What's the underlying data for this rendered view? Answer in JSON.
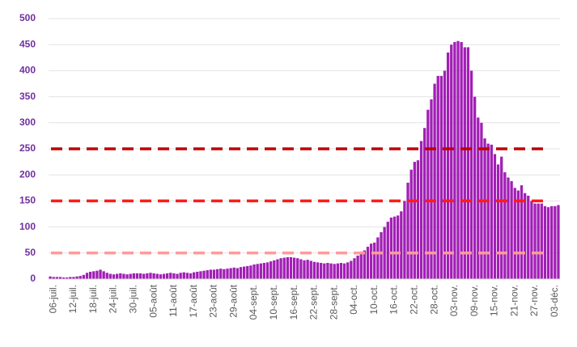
{
  "chart_data": {
    "type": "bar",
    "color": "#a11fb5",
    "categories": [
      null,
      "06-juil.",
      null,
      null,
      null,
      null,
      null,
      "12-juil.",
      null,
      null,
      null,
      null,
      null,
      "18-juil.",
      null,
      null,
      null,
      null,
      null,
      "24-juil.",
      null,
      null,
      null,
      null,
      null,
      "30-juil.",
      null,
      null,
      null,
      null,
      null,
      "05-août",
      null,
      null,
      null,
      null,
      null,
      "11-août",
      null,
      null,
      null,
      null,
      null,
      "17-août",
      null,
      null,
      null,
      null,
      null,
      "23-août",
      null,
      null,
      null,
      null,
      null,
      "29-août",
      null,
      null,
      null,
      null,
      null,
      "04-sept.",
      null,
      null,
      null,
      null,
      null,
      "10-sept.",
      null,
      null,
      null,
      null,
      null,
      "16-sept.",
      null,
      null,
      null,
      null,
      null,
      "22-sept.",
      null,
      null,
      null,
      null,
      null,
      "28-sept.",
      null,
      null,
      null,
      null,
      null,
      "04-oct.",
      null,
      null,
      null,
      null,
      null,
      "10-oct.",
      null,
      null,
      null,
      null,
      null,
      "16-oct.",
      null,
      null,
      null,
      null,
      null,
      "22-oct.",
      null,
      null,
      null,
      null,
      null,
      "28-oct.",
      null,
      null,
      null,
      null,
      null,
      "03-nov.",
      null,
      null,
      null,
      null,
      null,
      "09-nov.",
      null,
      null,
      null,
      null,
      null,
      "15-nov.",
      null,
      null,
      null,
      null,
      null,
      "21-nov.",
      null,
      null,
      null,
      null,
      null,
      "27-nov.",
      null,
      null,
      null,
      null,
      null,
      "03-déc.",
      null
    ],
    "values": [
      5,
      4,
      4,
      4,
      3,
      3,
      4,
      4,
      5,
      6,
      8,
      12,
      14,
      15,
      16,
      18,
      15,
      12,
      10,
      9,
      10,
      11,
      10,
      9,
      10,
      11,
      11,
      11,
      10,
      11,
      12,
      11,
      10,
      9,
      10,
      11,
      12,
      11,
      10,
      12,
      13,
      12,
      11,
      13,
      14,
      15,
      16,
      17,
      18,
      18,
      19,
      20,
      19,
      20,
      21,
      22,
      21,
      23,
      24,
      25,
      26,
      28,
      29,
      30,
      31,
      32,
      34,
      36,
      38,
      40,
      41,
      42,
      42,
      41,
      40,
      38,
      36,
      37,
      35,
      33,
      32,
      31,
      30,
      31,
      30,
      29,
      30,
      31,
      30,
      32,
      35,
      40,
      45,
      50,
      55,
      62,
      68,
      70,
      80,
      90,
      100,
      110,
      118,
      120,
      122,
      130,
      150,
      185,
      210,
      225,
      228,
      265,
      290,
      325,
      345,
      375,
      390,
      390,
      400,
      435,
      450,
      455,
      457,
      455,
      445,
      445,
      400,
      350,
      310,
      300,
      270,
      260,
      258,
      240,
      220,
      235,
      205,
      195,
      188,
      175,
      170,
      180,
      165,
      160,
      150,
      145,
      145,
      145,
      140,
      138,
      140,
      140,
      142
    ],
    "ylim": [
      0,
      500
    ],
    "yticks": [
      0,
      50,
      100,
      150,
      200,
      250,
      300,
      350,
      400,
      450,
      500
    ],
    "grid": true,
    "reference_lines": [
      {
        "value": 250,
        "color": "#c00000"
      },
      {
        "value": 150,
        "color": "#ff1a1a"
      },
      {
        "value": 50,
        "color": "#ff9a9a"
      }
    ]
  }
}
